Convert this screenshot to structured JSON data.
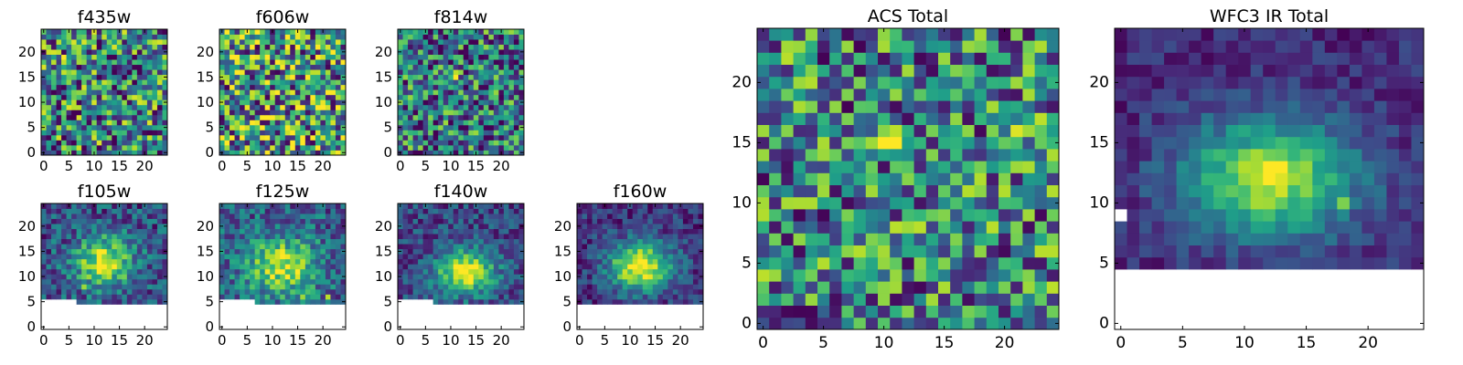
{
  "figure": {
    "colormap": "viridis",
    "masked_color": "#ffffff",
    "frame_color": "#000000"
  },
  "chart_data": [
    {
      "type": "heatmap",
      "title": "f435w",
      "grid_size": 25,
      "xticks": [
        "0",
        "5",
        "10",
        "15",
        "20"
      ],
      "yticks": [
        "0",
        "5",
        "10",
        "15",
        "20"
      ],
      "pattern": "noise",
      "level": 0.45,
      "spread": 0.5,
      "seed": 11,
      "hotspots": [
        {
          "x": 4,
          "y": 19,
          "v": 1.0
        },
        {
          "x": 10,
          "y": 13,
          "v": 0.8
        },
        {
          "x": 15,
          "y": 11,
          "v": 0.75
        }
      ],
      "mask_below_row": null,
      "mask_cells": []
    },
    {
      "type": "heatmap",
      "title": "f606w",
      "grid_size": 25,
      "xticks": [
        "0",
        "5",
        "10",
        "15",
        "20"
      ],
      "yticks": [
        "0",
        "5",
        "10",
        "15",
        "20"
      ],
      "pattern": "noise",
      "level": 0.55,
      "spread": 0.55,
      "seed": 23,
      "hotspots": [
        {
          "x": 23,
          "y": 9,
          "v": 1.0
        },
        {
          "x": 15,
          "y": 6,
          "v": 0.95
        },
        {
          "x": 19,
          "y": 16,
          "v": 0.9
        }
      ],
      "mask_below_row": null,
      "mask_cells": []
    },
    {
      "type": "heatmap",
      "title": "f814w",
      "grid_size": 25,
      "xticks": [
        "0",
        "5",
        "10",
        "15",
        "20"
      ],
      "yticks": [
        "0",
        "5",
        "10",
        "15",
        "20"
      ],
      "pattern": "noise",
      "level": 0.4,
      "spread": 0.45,
      "seed": 37,
      "hotspots": [
        {
          "x": 11,
          "y": 15,
          "v": 1.0
        },
        {
          "x": 11,
          "y": 16,
          "v": 0.9
        },
        {
          "x": 12,
          "y": 8,
          "v": 0.7
        }
      ],
      "mask_below_row": null,
      "mask_cells": []
    },
    {
      "type": "heatmap",
      "title": "f105w",
      "grid_size": 25,
      "xticks": [
        "0",
        "5",
        "10",
        "15",
        "20"
      ],
      "yticks": [
        "0",
        "5",
        "10",
        "15",
        "20"
      ],
      "pattern": "blob",
      "level": 0.25,
      "spread": 0.25,
      "seed": 41,
      "blob": {
        "x": 12,
        "y": 13,
        "sx": 4,
        "sy": 3.5,
        "amp": 0.7
      },
      "hotspots": [
        {
          "x": 11,
          "y": 15,
          "v": 1.0
        },
        {
          "x": 12,
          "y": 11,
          "v": 0.9
        },
        {
          "x": 8,
          "y": 8,
          "v": 0.85
        }
      ],
      "mask_below_row": 5,
      "mask_left_cols": 7,
      "mask_left_row": 6,
      "mask_cells": []
    },
    {
      "type": "heatmap",
      "title": "f125w",
      "grid_size": 25,
      "xticks": [
        "0",
        "5",
        "10",
        "15",
        "20"
      ],
      "yticks": [
        "0",
        "5",
        "10",
        "15",
        "20"
      ],
      "pattern": "blob",
      "level": 0.3,
      "spread": 0.25,
      "seed": 53,
      "blob": {
        "x": 12,
        "y": 12,
        "sx": 5,
        "sy": 4,
        "amp": 0.6
      },
      "hotspots": [
        {
          "x": 13,
          "y": 12,
          "v": 1.0
        },
        {
          "x": 15,
          "y": 10,
          "v": 0.95
        },
        {
          "x": 21,
          "y": 6,
          "v": 0.9
        },
        {
          "x": 16,
          "y": 6,
          "v": 0.85
        }
      ],
      "mask_below_row": 5,
      "mask_left_cols": 7,
      "mask_left_row": 6,
      "mask_cells": []
    },
    {
      "type": "heatmap",
      "title": "f140w",
      "grid_size": 25,
      "xticks": [
        "0",
        "5",
        "10",
        "15",
        "20"
      ],
      "yticks": [
        "0",
        "5",
        "10",
        "15",
        "20"
      ],
      "pattern": "blob",
      "level": 0.22,
      "spread": 0.2,
      "seed": 67,
      "blob": {
        "x": 13,
        "y": 11,
        "sx": 4,
        "sy": 3,
        "amp": 0.8
      },
      "hotspots": [
        {
          "x": 13,
          "y": 11,
          "v": 1.0
        },
        {
          "x": 14,
          "y": 10,
          "v": 1.0
        },
        {
          "x": 13,
          "y": 10,
          "v": 0.95
        }
      ],
      "mask_below_row": 5,
      "mask_left_cols": 7,
      "mask_left_row": 6,
      "mask_cells": []
    },
    {
      "type": "heatmap",
      "title": "f160w",
      "grid_size": 25,
      "xticks": [
        "0",
        "5",
        "10",
        "15",
        "20"
      ],
      "yticks": [
        "0",
        "5",
        "10",
        "15",
        "20"
      ],
      "pattern": "blob",
      "level": 0.15,
      "spread": 0.18,
      "seed": 79,
      "blob": {
        "x": 12,
        "y": 12,
        "sx": 4.5,
        "sy": 3.5,
        "amp": 0.85
      },
      "hotspots": [
        {
          "x": 13,
          "y": 13,
          "v": 1.0
        },
        {
          "x": 11,
          "y": 12,
          "v": 1.0
        },
        {
          "x": 12,
          "y": 11,
          "v": 0.95
        }
      ],
      "mask_below_row": 5,
      "mask_cells": []
    },
    {
      "type": "heatmap",
      "title": "ACS Total",
      "grid_size": 25,
      "xticks": [
        "0",
        "5",
        "10",
        "15",
        "20"
      ],
      "yticks": [
        "0",
        "5",
        "10",
        "15",
        "20"
      ],
      "pattern": "noise",
      "level": 0.45,
      "spread": 0.45,
      "seed": 97,
      "hotspots": [
        {
          "x": 10,
          "y": 15,
          "v": 1.0
        },
        {
          "x": 11,
          "y": 15,
          "v": 1.0
        },
        {
          "x": 21,
          "y": 16,
          "v": 0.95
        },
        {
          "x": 18,
          "y": 23,
          "v": 0.8
        },
        {
          "x": 3,
          "y": 20,
          "v": 0.85
        },
        {
          "x": 24,
          "y": 3,
          "v": 0.9
        },
        {
          "x": 22,
          "y": 3,
          "v": 0.85
        }
      ],
      "mask_below_row": null,
      "mask_cells": []
    },
    {
      "type": "heatmap",
      "title": "WFC3 IR Total",
      "grid_size": 25,
      "xticks": [
        "0",
        "5",
        "10",
        "15",
        "20"
      ],
      "yticks": [
        "0",
        "5",
        "10",
        "15",
        "20"
      ],
      "pattern": "blob",
      "level": 0.12,
      "spread": 0.12,
      "seed": 113,
      "blob": {
        "x": 12,
        "y": 12,
        "sx": 5,
        "sy": 3.5,
        "amp": 0.75
      },
      "hotspots": [
        {
          "x": 12,
          "y": 13,
          "v": 1.0
        },
        {
          "x": 13,
          "y": 13,
          "v": 1.0
        },
        {
          "x": 12,
          "y": 12,
          "v": 1.0
        },
        {
          "x": 13,
          "y": 12,
          "v": 0.95
        },
        {
          "x": 18,
          "y": 10,
          "v": 0.8
        }
      ],
      "mask_below_row": 5,
      "mask_cells": [
        {
          "x": 0,
          "y": 9
        }
      ]
    }
  ]
}
